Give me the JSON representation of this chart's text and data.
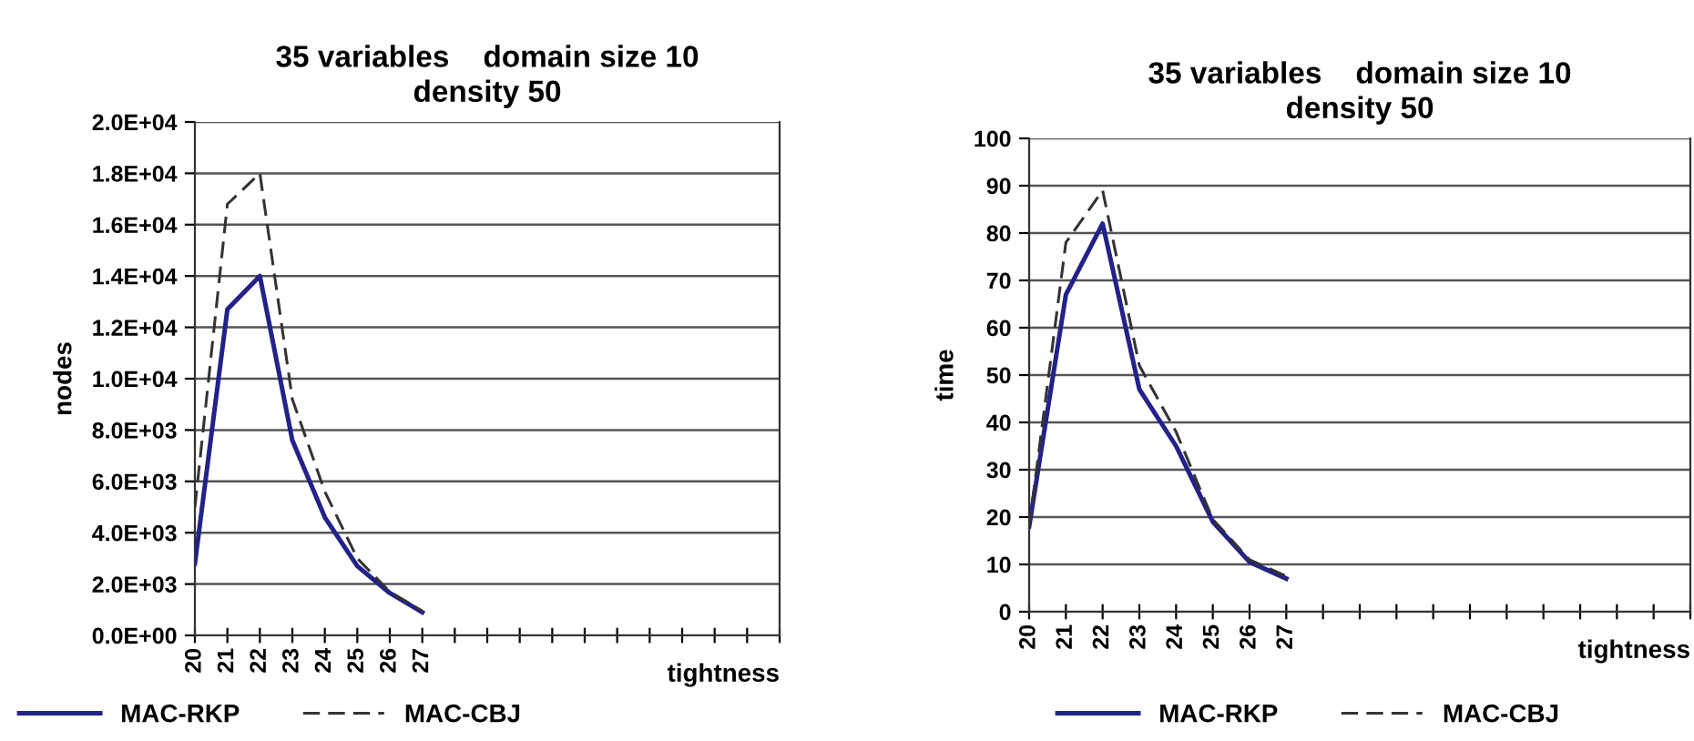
{
  "chart_data": [
    {
      "type": "line",
      "title": "35 variables    domain size 10\ndensity 50",
      "xlabel": "tightness",
      "ylabel": "nodes",
      "categories": [
        "20",
        "21",
        "22",
        "23",
        "24",
        "25",
        "26",
        "27",
        null,
        null,
        null,
        null,
        null,
        null,
        null,
        null,
        null,
        null,
        null
      ],
      "series": [
        {
          "name": "MAC-RKP",
          "color": "#22228a",
          "line_style": "solid",
          "values": [
            2800,
            12700,
            14000,
            7600,
            4600,
            2700,
            1650,
            900,
            null,
            null,
            null,
            null,
            null,
            null,
            null,
            null,
            null,
            null,
            null
          ]
        },
        {
          "name": "MAC-CBJ",
          "color": "#333333",
          "line_style": "dashed",
          "values": [
            5000,
            16800,
            18000,
            9200,
            5600,
            3000,
            1700,
            950,
            null,
            null,
            null,
            null,
            null,
            null,
            null,
            null,
            null,
            null,
            null
          ]
        }
      ],
      "ylim": [
        0,
        20000
      ],
      "yticks": [
        {
          "value": 0,
          "label": "0.0E+00"
        },
        {
          "value": 2000,
          "label": "2.0E+03"
        },
        {
          "value": 4000,
          "label": "4.0E+03"
        },
        {
          "value": 6000,
          "label": "6.0E+03"
        },
        {
          "value": 8000,
          "label": "8.0E+03"
        },
        {
          "value": 10000,
          "label": "1.0E+04"
        },
        {
          "value": 12000,
          "label": "1.2E+04"
        },
        {
          "value": 14000,
          "label": "1.4E+04"
        },
        {
          "value": 16000,
          "label": "1.6E+04"
        },
        {
          "value": 18000,
          "label": "1.8E+04"
        },
        {
          "value": 20000,
          "label": "2.0E+04"
        }
      ],
      "grid": "y",
      "legend": "bottom left"
    },
    {
      "type": "line",
      "title": "35 variables    domain size 10\ndensity 50",
      "xlabel": "tightness",
      "ylabel": "time",
      "categories": [
        "20",
        "21",
        "22",
        "23",
        "24",
        "25",
        "26",
        "27",
        null,
        null,
        null,
        null,
        null,
        null,
        null,
        null,
        null,
        null,
        null
      ],
      "series": [
        {
          "name": "MAC-RKP",
          "color": "#22228a",
          "line_style": "solid",
          "values": [
            18,
            67,
            82,
            47,
            35,
            19,
            10.5,
            7,
            null,
            null,
            null,
            null,
            null,
            null,
            null,
            null,
            null,
            null,
            null
          ]
        },
        {
          "name": "MAC-CBJ",
          "color": "#333333",
          "line_style": "dashed",
          "values": [
            18,
            78,
            89,
            52,
            38,
            19.5,
            11,
            7.5,
            null,
            null,
            null,
            null,
            null,
            null,
            null,
            null,
            null,
            null,
            null
          ]
        }
      ],
      "ylim": [
        0,
        100
      ],
      "yticks": [
        0,
        10,
        20,
        30,
        40,
        50,
        60,
        70,
        80,
        90,
        100
      ],
      "grid": "y",
      "legend": "bottom left"
    }
  ]
}
